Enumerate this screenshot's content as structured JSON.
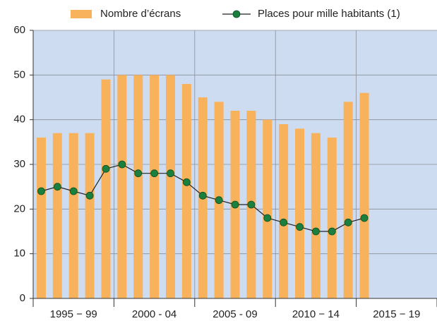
{
  "chart_data": {
    "type": "bar-line",
    "categories": [
      null,
      null,
      null,
      null,
      null,
      null,
      null,
      null,
      null,
      null,
      null,
      null,
      null,
      null,
      null,
      null,
      null,
      null,
      null,
      null,
      null,
      null,
      null,
      null,
      null
    ],
    "x_groups": [
      "1995 − 99",
      "2000 - 04",
      "2005 - 09",
      "2010 − 14",
      "2015 − 19"
    ],
    "series": [
      {
        "name": "Nombre d’écrans",
        "type": "bar",
        "color": "#f9b25c",
        "values": [
          36,
          37,
          37,
          37,
          49,
          50,
          50,
          50,
          50,
          48,
          45,
          44,
          42,
          42,
          40,
          39,
          38,
          37,
          36,
          44,
          46,
          null,
          null,
          null,
          null
        ]
      },
      {
        "name": "Places pour mille habitants (1)",
        "type": "line",
        "color": "#1b7f3e",
        "values": [
          24,
          25,
          24,
          23,
          29,
          30,
          28,
          28,
          28,
          26,
          23,
          22,
          21,
          21,
          18,
          17,
          16,
          15,
          15,
          17,
          18,
          null,
          null,
          null,
          null
        ]
      }
    ],
    "ylim": [
      0,
      60
    ],
    "yticks": [
      0,
      10,
      20,
      30,
      40,
      50,
      60
    ],
    "grid": true,
    "legend": "top"
  }
}
